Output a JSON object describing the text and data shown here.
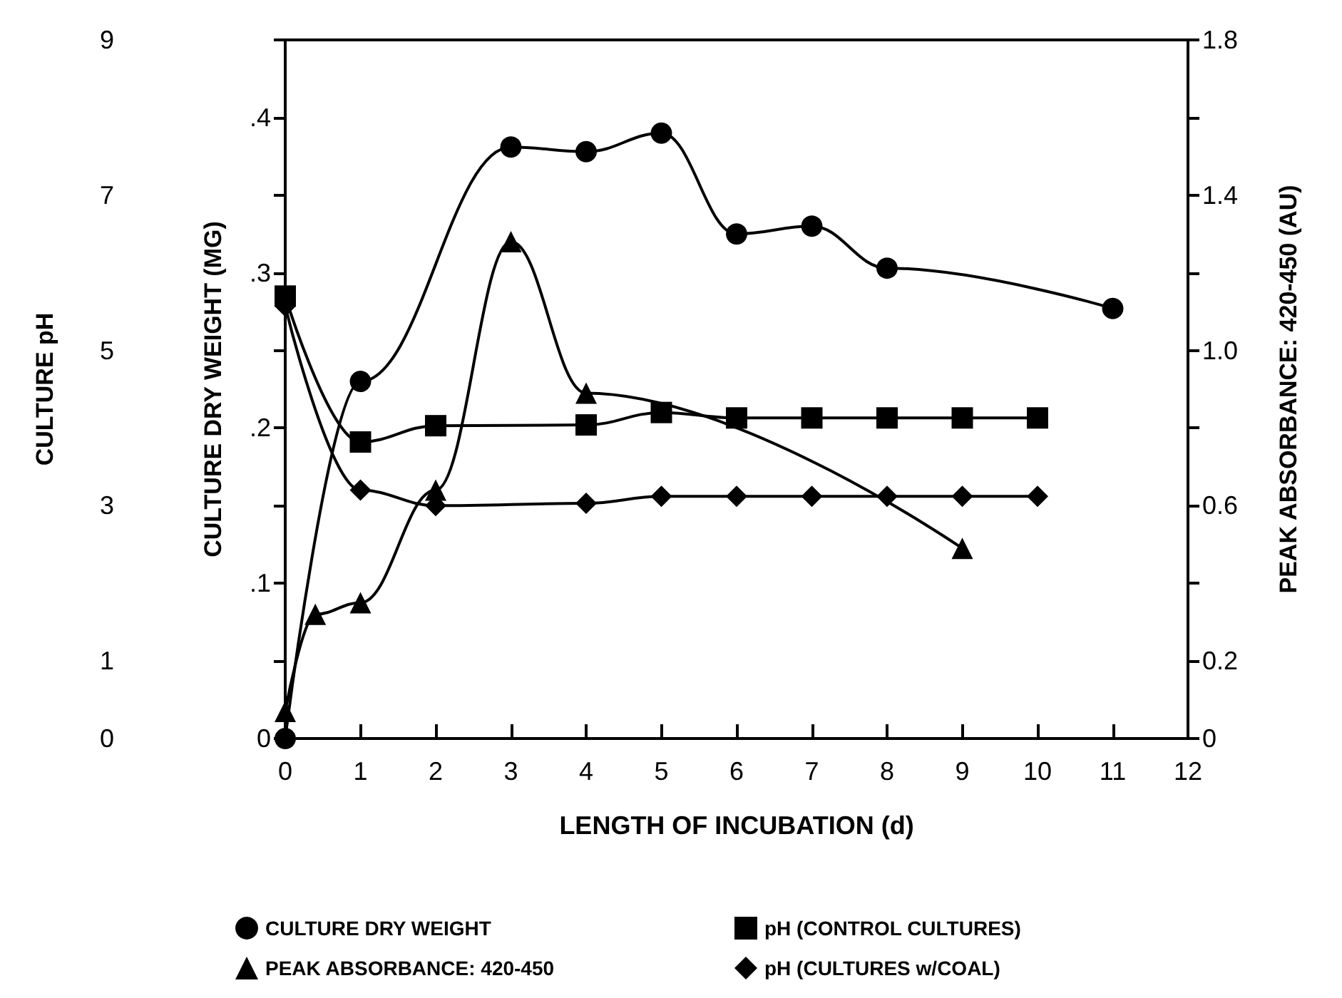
{
  "chart_data": {
    "type": "line",
    "xlabel": "LENGTH OF INCUBATION (d)",
    "ylabel": "CULTURE pH",
    "y2label": "CULTURE DRY WEIGHT (MG)",
    "y3label": "PEAK ABSORBANCE: 420-450 (AU)",
    "xlim": [
      0,
      12
    ],
    "xticks": [
      0,
      1,
      2,
      3,
      4,
      5,
      6,
      7,
      8,
      9,
      10,
      11,
      12
    ],
    "ylim": [
      0,
      9
    ],
    "yticks": [
      0,
      1,
      {
        "value": 2,
        "label": null
      },
      3,
      {
        "value": 4,
        "label": null
      },
      5,
      {
        "value": 6,
        "label": null
      },
      7,
      {
        "value": 8,
        "label": null
      },
      9
    ],
    "y2lim": [
      0,
      0.45
    ],
    "y2ticks": [
      0,
      {
        "value": 0.1,
        "label": ".1"
      },
      {
        "value": 0.2,
        "label": ".2"
      },
      {
        "value": 0.3,
        "label": ".3"
      },
      {
        "value": 0.4,
        "label": ".4"
      }
    ],
    "y3lim": [
      0,
      1.8
    ],
    "y3ticks": [
      0,
      0.2,
      {
        "value": 0.4,
        "label": null
      },
      0.6,
      {
        "value": 0.8,
        "label": null
      },
      {
        "value": 1,
        "label": "1.0"
      },
      {
        "value": 1.2,
        "label": null
      },
      1.4,
      {
        "value": 1.6,
        "label": null
      },
      1.8
    ],
    "legend": "bottom",
    "series": [
      {
        "name": "CULTURE DRY WEIGHT",
        "color": "#000000",
        "marker": "circle",
        "axis": "y2",
        "x": [
          0,
          1,
          3,
          4,
          5,
          6,
          7,
          8,
          11
        ],
        "values": [
          0,
          0.23,
          0.381,
          0.378,
          0.39,
          0.325,
          0.33,
          0.303,
          0.277
        ]
      },
      {
        "name": "PEAK ABSORBANCE: 420-450",
        "color": "#000000",
        "marker": "triangle",
        "axis": "y3",
        "x": [
          0,
          0.4,
          1,
          2,
          3,
          4,
          9
        ],
        "values": [
          0.07,
          0.32,
          0.35,
          0.64,
          1.28,
          0.89,
          0.49
        ]
      },
      {
        "name": "pH (CONTROL CULTURES)",
        "color": "#000000",
        "marker": "square",
        "axis": "y",
        "x": [
          0,
          1,
          2,
          4,
          5,
          6,
          7,
          8,
          9,
          10
        ],
        "values": [
          5.7,
          3.82,
          4.03,
          4.04,
          4.2,
          4.13,
          4.13,
          4.13,
          4.13,
          4.13
        ]
      },
      {
        "name": "pH (CULTURES w/COAL)",
        "color": "#000000",
        "marker": "diamond",
        "axis": "y",
        "x": [
          0,
          1,
          2,
          4,
          5,
          6,
          7,
          8,
          9,
          10
        ],
        "values": [
          5.57,
          3.2,
          3.0,
          3.03,
          3.12,
          3.12,
          3.12,
          3.12,
          3.12,
          3.12
        ]
      }
    ]
  }
}
